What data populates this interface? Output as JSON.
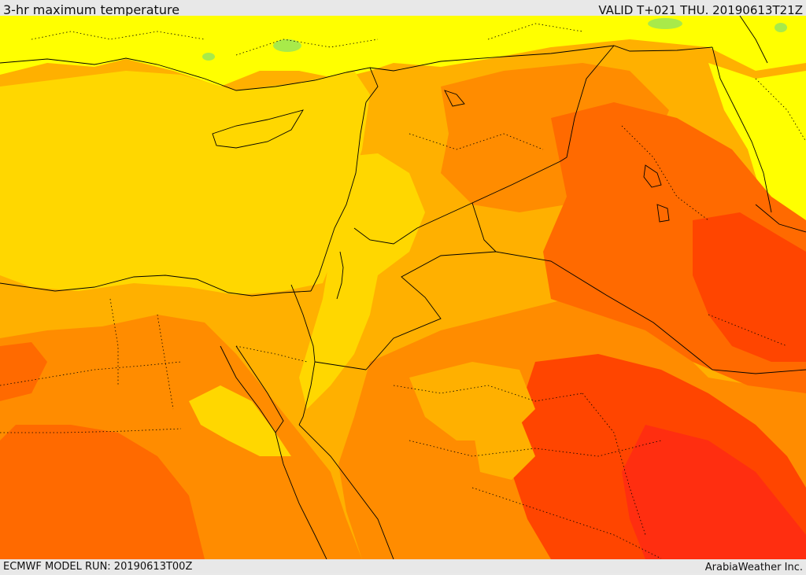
{
  "header": {
    "title": "3-hr maximum temperature",
    "valid": "VALID T+021 THU. 20190613T21Z"
  },
  "footer": {
    "model_run": "ECMWF MODEL RUN: 20190613T00Z",
    "credit": "ArabiaWeather Inc."
  },
  "map": {
    "field": "3-hr maximum temperature",
    "colors": {
      "light_green": "#a8ea4a",
      "yellow": "#ffff00",
      "gold": "#ffd700",
      "orange_yellow": "#ffb000",
      "orange": "#ff8c00",
      "dark_orange": "#ff6a00",
      "red_orange": "#ff4500",
      "red": "#ff2e10"
    }
  }
}
